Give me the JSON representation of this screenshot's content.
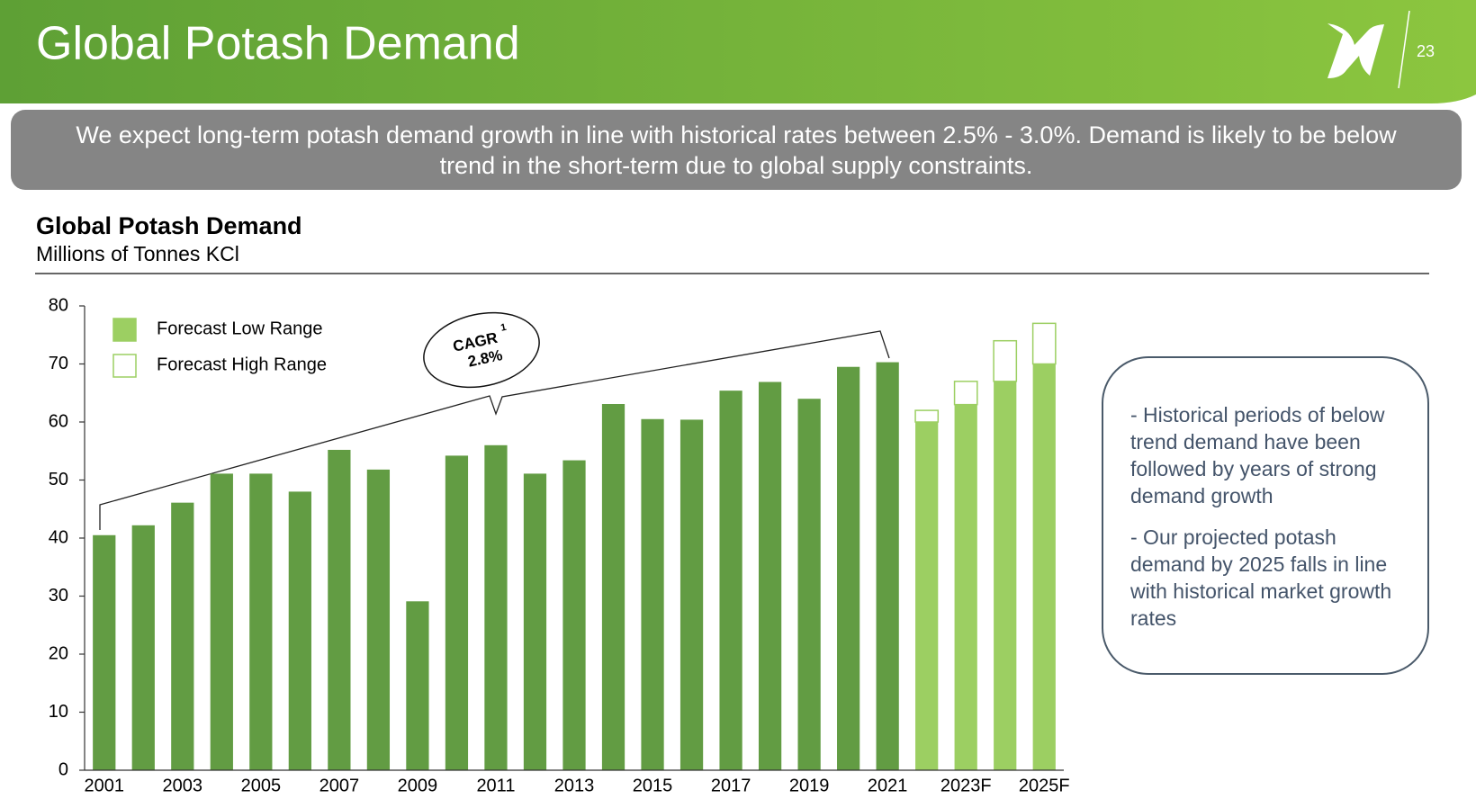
{
  "header": {
    "title": "Global Potash Demand",
    "page_number": "23"
  },
  "banner": {
    "lines": [
      "We expect long-term potash demand growth in line with historical rates between 2.5% - 3.0%. Demand is likely to be below",
      "trend in the short-term due to global supply constraints."
    ]
  },
  "chart_data": {
    "type": "bar",
    "stacked": true,
    "title": "Global Potash Demand",
    "subtitle": "Millions of Tonnes KCl",
    "categories": [
      "2001",
      null,
      "2003",
      null,
      "2005",
      null,
      "2007",
      null,
      "2009",
      null,
      "2011",
      null,
      "2013",
      null,
      "2015",
      null,
      "2017",
      null,
      "2019",
      null,
      "2021",
      null,
      "2023F",
      null,
      "2025F"
    ],
    "series": [
      {
        "color": "#629c43",
        "values": [
          40.5,
          42.2,
          46.1,
          51.1,
          51.1,
          48,
          55.2,
          51.8,
          29.1,
          54.2,
          56,
          51.1,
          53.4,
          63.1,
          60.5,
          60.4,
          65.4,
          66.9,
          64,
          69.5,
          70.3,
          null,
          null,
          null,
          null
        ]
      },
      {
        "name": "Forecast Low Range",
        "color": "#9ccf62",
        "values": [
          null,
          null,
          null,
          null,
          null,
          null,
          null,
          null,
          null,
          null,
          null,
          null,
          null,
          null,
          null,
          null,
          null,
          null,
          null,
          null,
          null,
          60,
          63,
          67,
          70
        ]
      },
      {
        "name": "Forecast High Range",
        "color": "#ffffff",
        "values": [
          null,
          null,
          null,
          null,
          null,
          null,
          null,
          null,
          null,
          null,
          null,
          null,
          null,
          null,
          null,
          null,
          null,
          null,
          null,
          null,
          null,
          2,
          4,
          7,
          7
        ]
      }
    ],
    "ylim": [
      0,
      80
    ],
    "yticks": [
      0,
      10,
      20,
      30,
      40,
      50,
      60,
      70,
      80
    ],
    "grid": false,
    "legend": "upper left",
    "annotation": {
      "text": "CAGR",
      "superscript": "1",
      "value": "2.8%"
    }
  },
  "box": {
    "paragraphs": [
      "- Historical periods of below trend demand have been followed by years of strong demand growth",
      "- Our projected potash demand by 2025 falls in line with historical market growth rates"
    ]
  }
}
